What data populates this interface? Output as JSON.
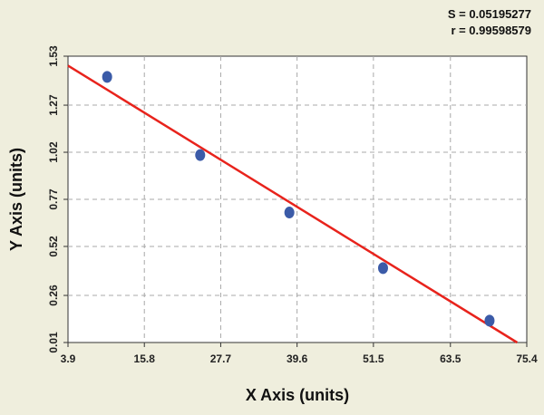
{
  "stats": {
    "s_text": "S = 0.05195277",
    "r_text": "r = 0.99598579"
  },
  "chart_data": {
    "type": "scatter",
    "title": "",
    "xlabel": "X Axis (units)",
    "ylabel": "Y Axis (units)",
    "xlim": [
      3.9,
      75.4
    ],
    "ylim": [
      0.01,
      1.53
    ],
    "x_ticks": [
      "3.9",
      "15.8",
      "27.7",
      "39.6",
      "51.5",
      "63.5",
      "75.4"
    ],
    "y_ticks": [
      "0.01",
      "0.26",
      "0.52",
      "0.77",
      "1.02",
      "1.27",
      "1.53"
    ],
    "grid": true,
    "series": [
      {
        "points": [
          {
            "x": 10.0,
            "y": 1.42
          },
          {
            "x": 24.5,
            "y": 1.005
          },
          {
            "x": 38.4,
            "y": 0.7
          },
          {
            "x": 53.0,
            "y": 0.405
          },
          {
            "x": 69.6,
            "y": 0.126
          }
        ],
        "color": "#3b5ba8"
      }
    ],
    "fit_line": {
      "points": [
        {
          "x": 3.9,
          "y": 1.48
        },
        {
          "x": 73.9,
          "y": 0.01
        }
      ],
      "color": "#e8231c"
    }
  }
}
